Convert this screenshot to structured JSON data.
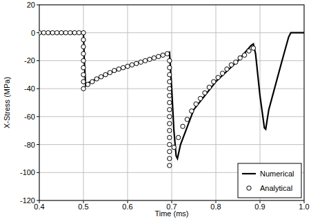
{
  "chart_data": {
    "type": "line",
    "x_label": "Time (ms)",
    "y_label": "X-Stress (MPa)",
    "xlim": [
      0.4,
      1.0
    ],
    "ylim": [
      -120,
      20
    ],
    "xticks": [
      0.4,
      0.5,
      0.6,
      0.7,
      0.8,
      0.9,
      {
        "value": 1,
        "label": "1.0"
      }
    ],
    "yticks": [
      -120,
      -100,
      -80,
      -60,
      -40,
      -20,
      0,
      20
    ],
    "grid": true,
    "legend": "lower right",
    "series": [
      {
        "name": "Numerical",
        "type": "line",
        "color": "#000000",
        "line_style": "solid",
        "x": [
          0.4,
          0.5,
          0.502,
          0.505,
          0.51,
          0.55,
          0.6,
          0.65,
          0.69,
          0.695,
          0.7,
          0.705,
          0.71,
          0.713,
          0.72,
          0.75,
          0.8,
          0.85,
          0.88,
          0.885,
          0.89,
          0.9,
          0.91,
          0.913,
          0.92,
          0.95,
          0.965,
          0.97,
          1.0
        ],
        "values": [
          0,
          0,
          -20,
          -38,
          -36,
          -30,
          -24,
          -19,
          -15,
          -14,
          -40,
          -70,
          -88,
          -90,
          -80,
          -55,
          -35,
          -20,
          -9,
          -8,
          -15,
          -45,
          -68,
          -69,
          -55,
          -20,
          -3,
          0,
          0
        ]
      },
      {
        "name": "Analytical",
        "type": "scatter",
        "color": "#000000",
        "marker": "circle",
        "x": [
          0.4,
          0.41,
          0.42,
          0.43,
          0.44,
          0.45,
          0.46,
          0.47,
          0.48,
          0.49,
          0.5,
          0.5,
          0.5,
          0.5,
          0.5,
          0.5,
          0.5,
          0.5,
          0.5,
          0.51,
          0.52,
          0.53,
          0.54,
          0.55,
          0.56,
          0.57,
          0.58,
          0.59,
          0.6,
          0.61,
          0.62,
          0.63,
          0.64,
          0.65,
          0.66,
          0.67,
          0.68,
          0.69,
          0.695,
          0.695,
          0.695,
          0.695,
          0.695,
          0.695,
          0.695,
          0.695,
          0.695,
          0.695,
          0.695,
          0.695,
          0.695,
          0.695,
          0.695,
          0.695,
          0.705,
          0.715,
          0.725,
          0.735,
          0.745,
          0.755,
          0.765,
          0.775,
          0.785,
          0.795,
          0.805,
          0.815,
          0.825,
          0.835,
          0.845,
          0.855,
          0.865,
          0.875,
          0.885
        ],
        "values": [
          0,
          0,
          0,
          0,
          0,
          0,
          0,
          0,
          0,
          0,
          0,
          -5,
          -10,
          -15,
          -20,
          -25,
          -30,
          -35,
          -40,
          -37,
          -35,
          -33,
          -31.5,
          -30,
          -28.5,
          -27,
          -26,
          -25,
          -24,
          -23,
          -22,
          -21,
          -20,
          -19,
          -18,
          -17,
          -16,
          -15,
          -20,
          -25,
          -30,
          -35,
          -40,
          -45,
          -50,
          -55,
          -60,
          -65,
          -70,
          -75,
          -80,
          -85,
          -90,
          -95,
          -82,
          -75,
          -67,
          -62,
          -56,
          -51,
          -47,
          -43,
          -39,
          -35,
          -32,
          -29,
          -26,
          -23,
          -21,
          -18,
          -16,
          -13,
          -11
        ]
      }
    ]
  }
}
